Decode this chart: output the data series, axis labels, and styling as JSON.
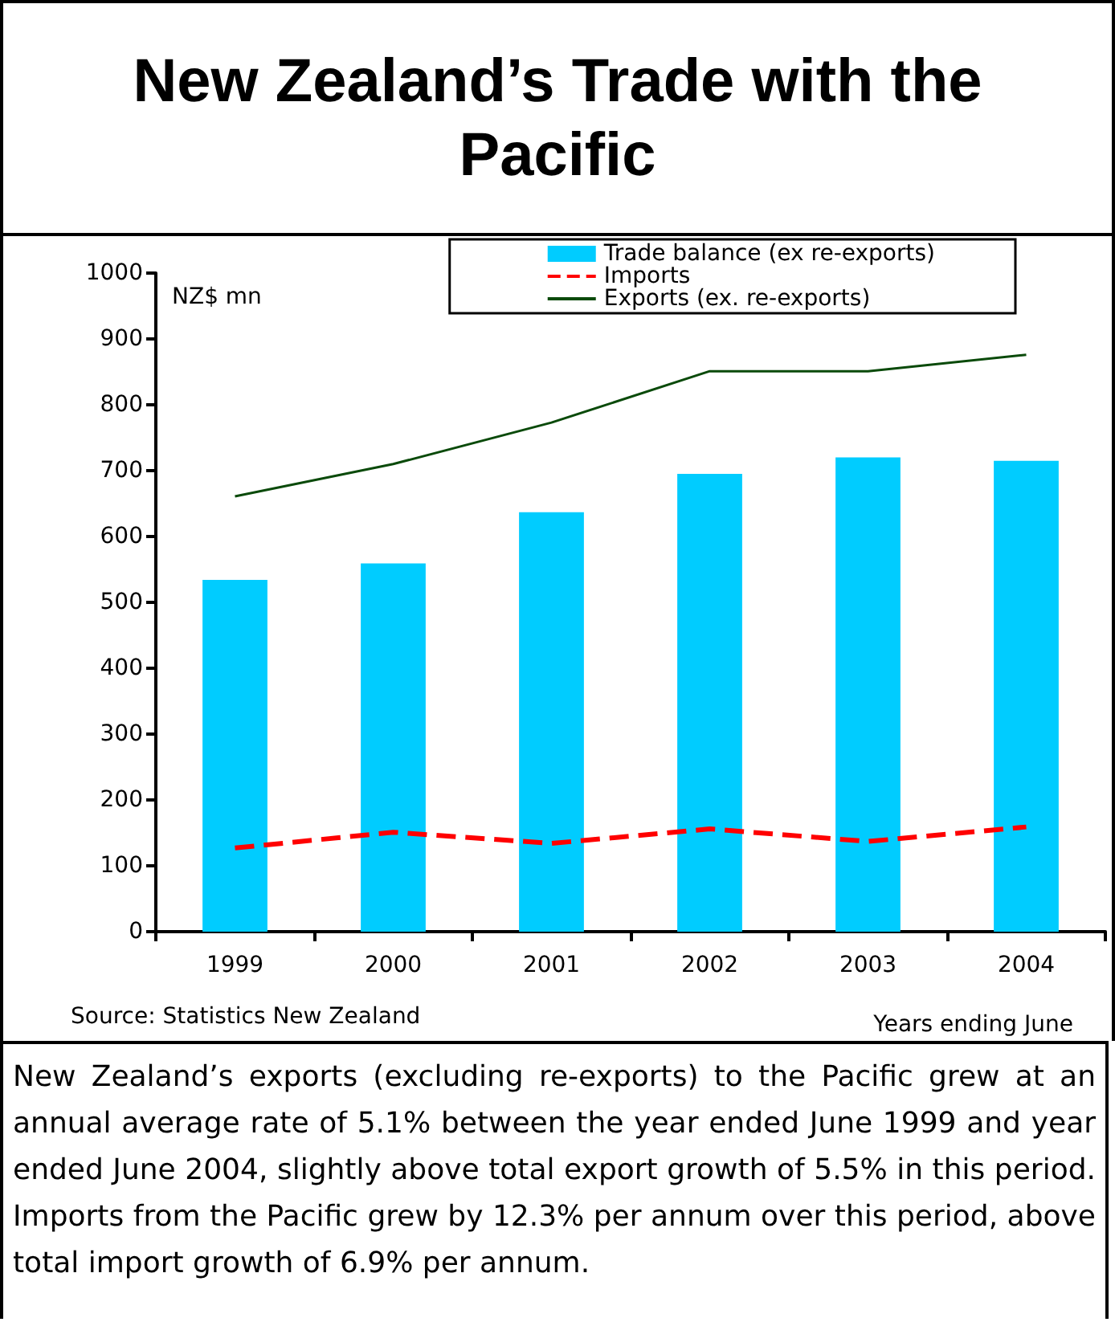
{
  "chart_data": {
    "type": "bar",
    "title": "New Zealand’s Trade with the Pacific",
    "ylabel": "NZ$ mn",
    "xlabel": "Years ending June",
    "categories": [
      "1999",
      "2000",
      "2001",
      "2002",
      "2003",
      "2004"
    ],
    "series": [
      {
        "name": "Trade balance (ex re-exports)",
        "color": "#00ccff",
        "values": [
          534,
          559,
          637,
          695,
          720,
          715
        ]
      },
      {
        "name": "Imports",
        "type": "line",
        "color": "#ff0000",
        "line_style": "dashed",
        "values": [
          127,
          151,
          134,
          156,
          137,
          159
        ]
      },
      {
        "name": "Exports (ex. re-exports)",
        "type": "line",
        "color": "#0a4a0a",
        "line_style": "solid",
        "values": [
          661,
          710,
          773,
          851,
          851,
          876
        ]
      }
    ],
    "ylim": [
      0,
      1000
    ],
    "yticks": [
      0,
      100,
      200,
      300,
      400,
      500,
      600,
      700,
      800,
      900,
      1000
    ],
    "legend": "top right",
    "marker": "none",
    "annotations": [
      "Source: Statistics New Zealand",
      "New Zealand’s exports (excluding re-exports) to the Pacific grew at an annual average rate of 5.1% between the year ended June 1999 and year ended June 2004, slightly above total export growth of 5.5% in this period. Imports from the Pacific grew by 12.3% per annum over this period, above total import growth of 6.9% per annum."
    ]
  }
}
